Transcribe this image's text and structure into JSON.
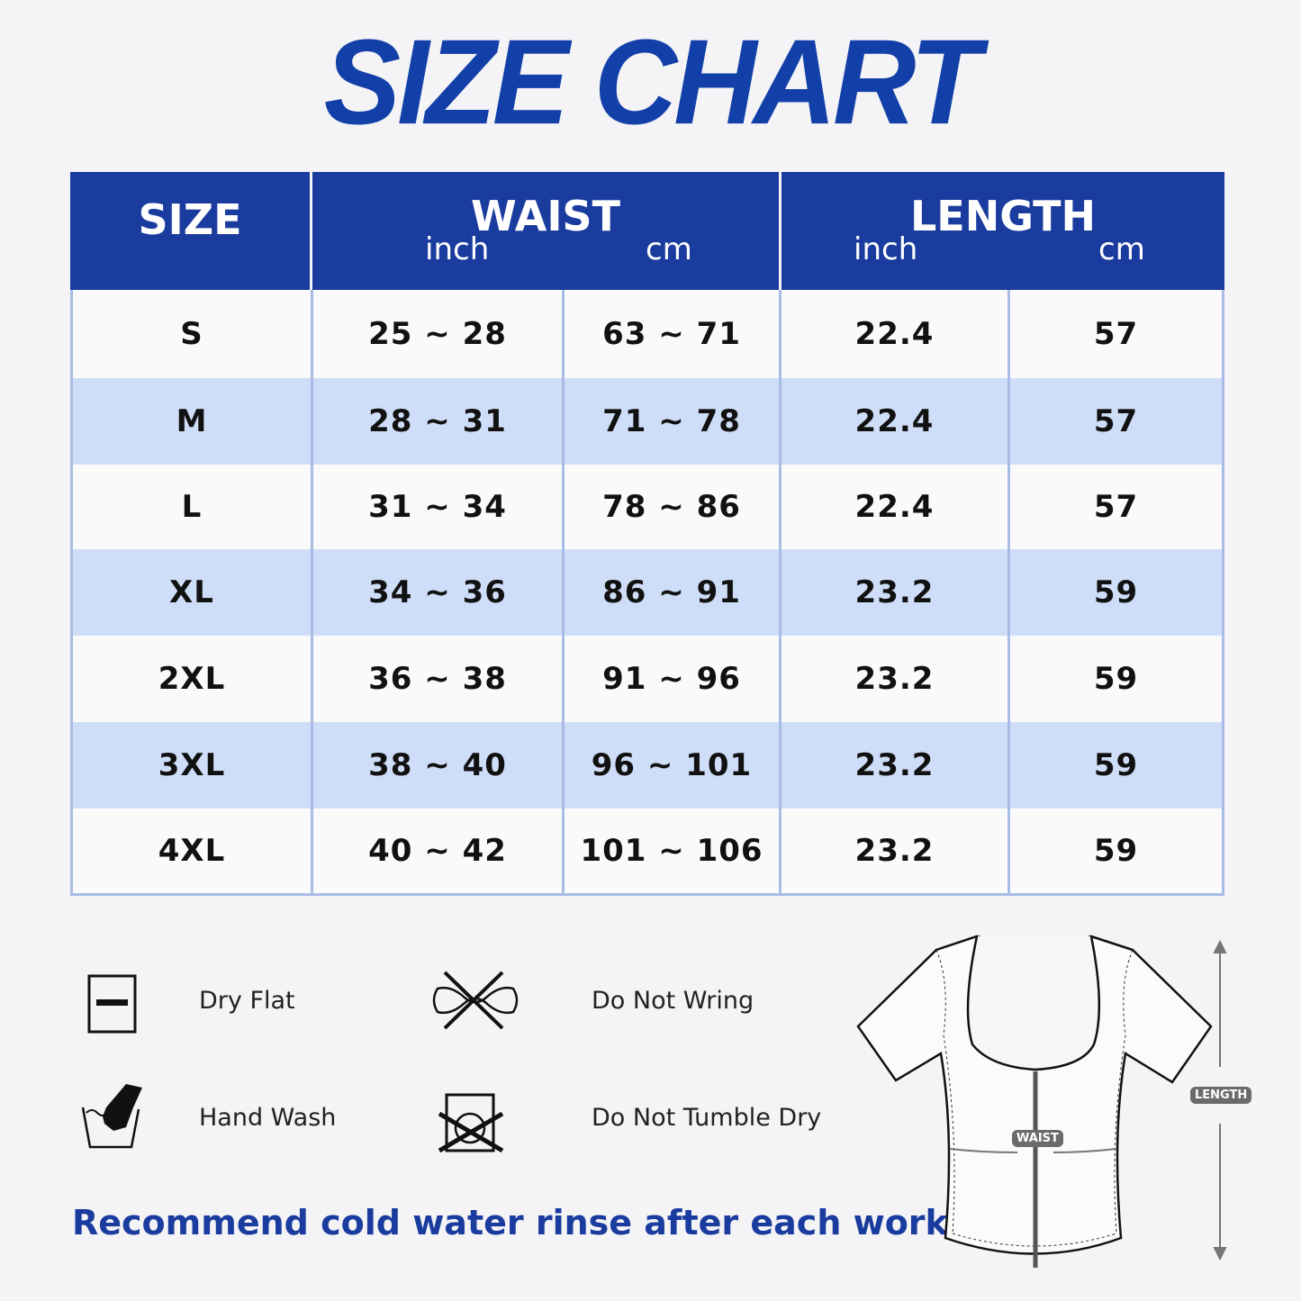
{
  "title": "SIZE CHART",
  "table": {
    "headers": {
      "size": "SIZE",
      "waist": "WAIST",
      "length": "LENGTH",
      "waist_inch": "inch",
      "waist_cm": "cm",
      "length_inch": "inch",
      "length_cm": "cm"
    },
    "rows": [
      {
        "size": "S",
        "waist_inch": "25 ~ 28",
        "waist_cm": "63 ~ 71",
        "length_inch": "22.4",
        "length_cm": "57"
      },
      {
        "size": "M",
        "waist_inch": "28 ~ 31",
        "waist_cm": "71 ~ 78",
        "length_inch": "22.4",
        "length_cm": "57"
      },
      {
        "size": "L",
        "waist_inch": "31 ~ 34",
        "waist_cm": "78 ~ 86",
        "length_inch": "22.4",
        "length_cm": "57"
      },
      {
        "size": "XL",
        "waist_inch": "34 ~ 36",
        "waist_cm": "86 ~ 91",
        "length_inch": "23.2",
        "length_cm": "59"
      },
      {
        "size": "2XL",
        "waist_inch": "36 ~ 38",
        "waist_cm": "91 ~ 96",
        "length_inch": "23.2",
        "length_cm": "59"
      },
      {
        "size": "3XL",
        "waist_inch": "38 ~ 40",
        "waist_cm": "96 ~ 101",
        "length_inch": "23.2",
        "length_cm": "59"
      },
      {
        "size": "4XL",
        "waist_inch": "40 ~ 42",
        "waist_cm": "101 ~ 106",
        "length_inch": "23.2",
        "length_cm": "59"
      }
    ]
  },
  "care": [
    {
      "icon": "dry-flat-icon",
      "label": "Dry Flat"
    },
    {
      "icon": "do-not-wring-icon",
      "label": "Do Not Wring"
    },
    {
      "icon": "hand-wash-icon",
      "label": "Hand Wash"
    },
    {
      "icon": "do-not-tumble-dry-icon",
      "label": "Do Not Tumble Dry"
    }
  ],
  "note": "Recommend cold water rinse after each workout.",
  "diagram": {
    "waist_label": "WAIST",
    "length_label": "LENGTH"
  },
  "colors": {
    "brand_blue": "#1a3c9e",
    "alt_row": "#cfdef8",
    "grid": "#a8bce6"
  }
}
